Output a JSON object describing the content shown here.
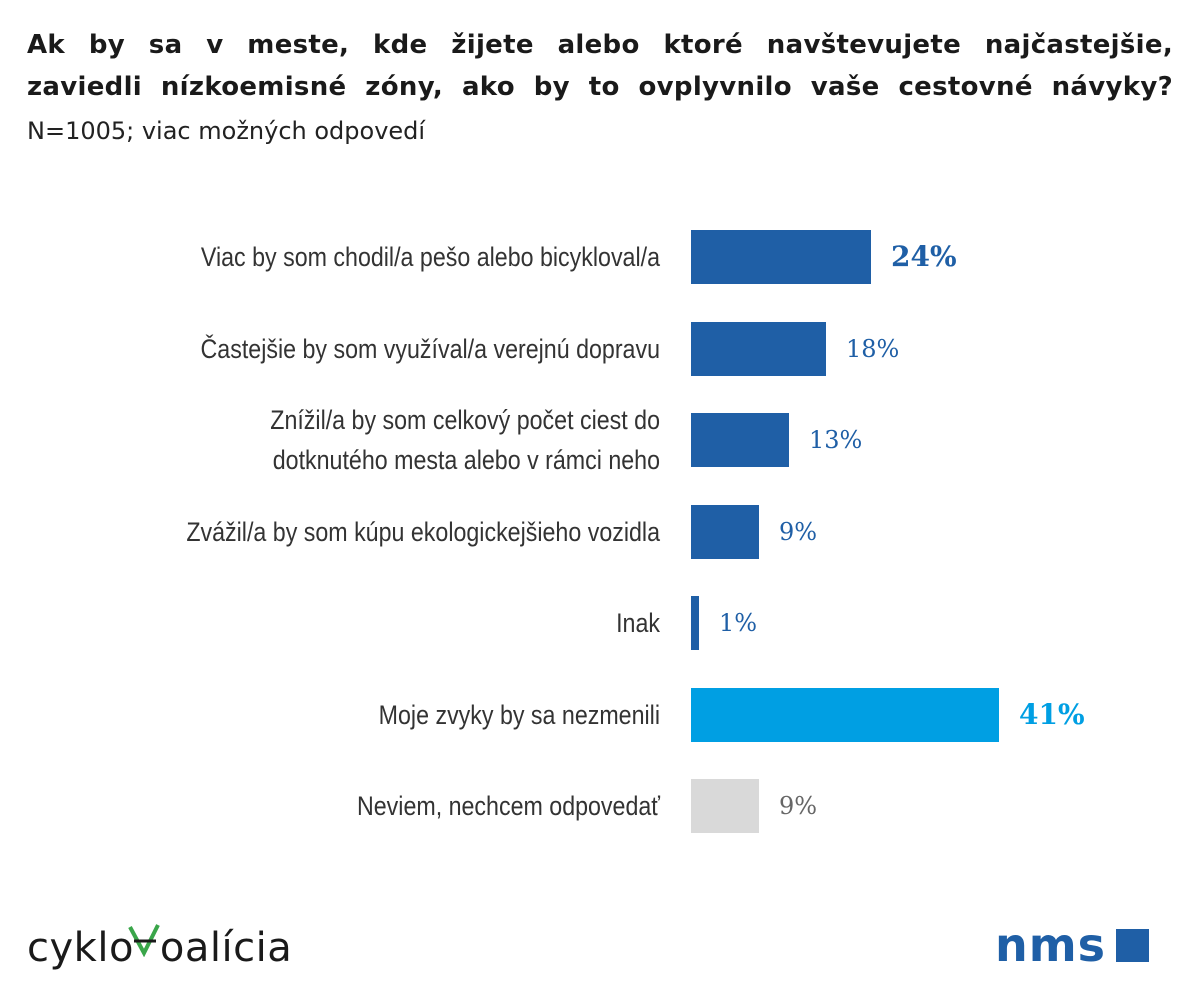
{
  "header": {
    "title_line1": "Ak by sa v meste, kde žijete alebo ktoré navštevujete najčastejšie,",
    "title_line2": "zaviedli nízkoemisné zóny, ako by to ovplyvnilo vaše cestovné návyky?",
    "subtitle": "N=1005; viac možných odpovedí"
  },
  "chart_data": {
    "type": "bar",
    "orientation": "horizontal",
    "title": "Ak by sa v meste, kde žijete alebo ktoré navštevujete najčastejšie, zaviedli nízkoemisné zóny, ako by to ovplyvnilo vaše cestovné návyky?",
    "subtitle": "N=1005; viac možných odpovedí",
    "xlabel": "",
    "ylabel": "",
    "xlim": [
      0,
      41
    ],
    "grid": false,
    "categories": [
      [
        "Viac by som chodil/a pešo  alebo bicykloval/a"
      ],
      [
        "Častejšie by som využíval/a verejnú dopravu"
      ],
      [
        "Znížil/a by som celkový počet ciest do",
        "dotknutého mesta alebo v rámci neho"
      ],
      [
        "Zvážil/a by som kúpu ekologickejšieho vozidla"
      ],
      [
        "Inak"
      ],
      [
        "Moje zvyky by sa nezmenili"
      ],
      [
        "Neviem, nechcem odpovedať"
      ]
    ],
    "values": [
      24,
      18,
      13,
      9,
      1,
      41,
      9
    ],
    "value_labels": [
      "24%",
      "18%",
      "13%",
      "9%",
      "1%",
      "41%",
      "9%"
    ],
    "colors": [
      "#1f5fa6",
      "#1f5fa6",
      "#1f5fa6",
      "#1f5fa6",
      "#1f5fa6",
      "#009fe3",
      "#d9d9d9"
    ],
    "label_colors": [
      "#1f5fa6",
      "#1f5fa6",
      "#1f5fa6",
      "#1f5fa6",
      "#1f5fa6",
      "#009fe3",
      "#666666"
    ],
    "bold_labels": [
      true,
      false,
      false,
      false,
      false,
      true,
      false
    ]
  },
  "logos": {
    "left_prefix": "cyklo",
    "left_suffix": "oalícia",
    "left_accent_color": "#3aa64a",
    "right_text": "nms",
    "right_color": "#1f5fa6"
  }
}
